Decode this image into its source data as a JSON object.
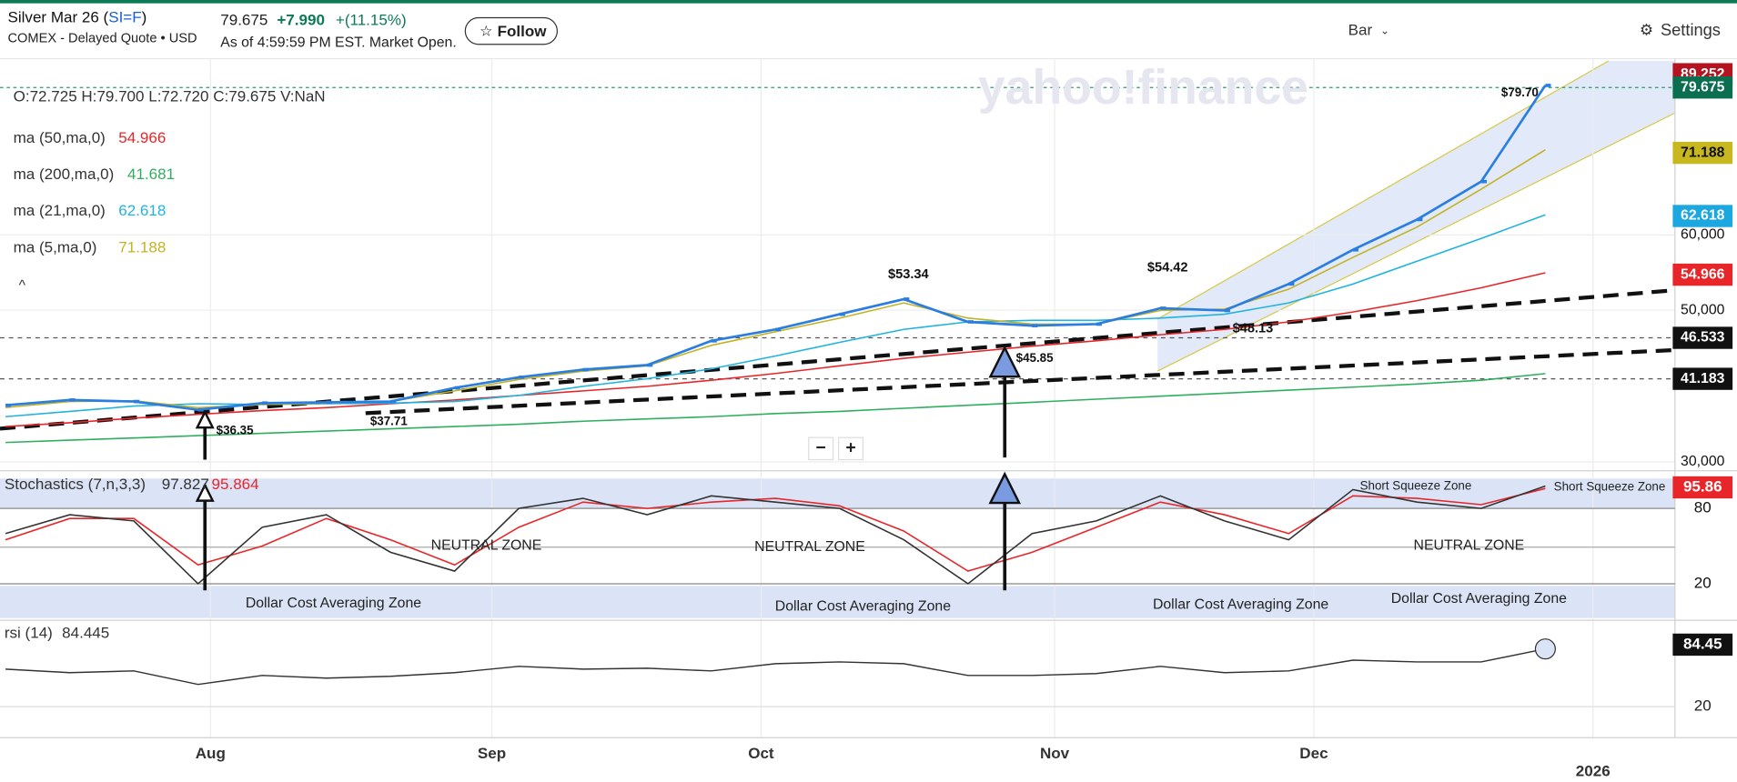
{
  "header": {
    "title_prefix": "Silver Mar 26 (",
    "symbol": "SI=F",
    "title_suffix": ")",
    "exchange": "COMEX - Delayed Quote • USD",
    "price": "79.675",
    "change": "+7.990",
    "change_pct": "+(11.15%)",
    "as_of": "As of 4:59:59 PM EST. Market Open.",
    "follow": "Follow"
  },
  "toolbar": {
    "chart_type": "Bar",
    "settings": "Settings"
  },
  "watermark": "yahoo!finance",
  "legend": {
    "ohlc": "O:72.725  H:79.700  L:72.720  C:79.675  V:NaN",
    "indicators": [
      {
        "label": "ma (50,ma,0)",
        "value": "54.966",
        "color": "#e8262a"
      },
      {
        "label": "ma (200,ma,0)",
        "value": "41.681",
        "color": "#2fae5f"
      },
      {
        "label": "ma (21,ma,0)",
        "value": "62.618",
        "color": "#1fb3e0"
      },
      {
        "label": "ma (5,ma,0)",
        "value": "71.188",
        "color": "#c3b324"
      }
    ]
  },
  "annotations": [
    "$79.70",
    "$53.34",
    "$54.42",
    "$48.13",
    "$45.85",
    "$37.71",
    "$36.35"
  ],
  "price_axis": [
    "89.252",
    "79.675",
    "71.188",
    "62.618",
    "60,000",
    "54.966",
    "50,000",
    "46.533",
    "41.183",
    "30,000"
  ],
  "stochastics": {
    "label": "Stochastics (7,n,3,3)",
    "k": "97.827",
    "d": "95.864",
    "axis": [
      "95.86",
      "80",
      "20"
    ],
    "zones": [
      "Short Squeeze Zone",
      "Short Squeeze Zone",
      "NEUTRAL ZONE",
      "NEUTRAL ZONE",
      "NEUTRAL ZONE",
      "Dollar Cost Averaging Zone",
      "Dollar Cost Averaging Zone",
      "Dollar Cost Averaging Zone",
      "Dollar Cost Averaging Zone"
    ]
  },
  "rsi": {
    "label": "rsi (14)",
    "value": "84.445",
    "axis": [
      "84.45",
      "20"
    ]
  },
  "zoom": [
    "−",
    "+"
  ],
  "x_axis": [
    "Aug",
    "Sep",
    "Oct",
    "Nov",
    "Dec",
    "2026"
  ],
  "chart": {
    "type": "line",
    "ylim": [
      29.6,
      83.2
    ],
    "close": [
      37.5,
      38.2,
      38.0,
      36.9,
      37.8,
      37.9,
      38.0,
      39.8,
      41.2,
      42.2,
      42.8,
      46.0,
      47.5,
      49.5,
      51.5,
      48.5,
      48.0,
      48.2,
      50.3,
      50.0,
      53.5,
      58.0,
      62.0,
      67.0,
      79.675
    ],
    "ma5": [
      37.2,
      38.0,
      38.1,
      37.2,
      37.6,
      37.8,
      38.0,
      39.4,
      40.9,
      42.0,
      42.7,
      45.4,
      47.2,
      49.0,
      51.0,
      49.0,
      48.2,
      48.2,
      50.0,
      50.2,
      52.8,
      57.0,
      61.0,
      66.0,
      71.188
    ],
    "ma21": [
      36.0,
      36.7,
      37.4,
      37.7,
      37.6,
      37.7,
      37.8,
      38.0,
      38.8,
      40.0,
      41.0,
      42.3,
      44.0,
      45.8,
      47.5,
      48.5,
      48.7,
      48.7,
      49.0,
      49.5,
      51.0,
      53.5,
      56.5,
      59.5,
      62.618
    ],
    "ma50": [
      34.7,
      35.2,
      35.8,
      36.3,
      36.8,
      37.2,
      37.7,
      38.2,
      38.8,
      39.4,
      40.0,
      40.8,
      41.7,
      42.7,
      43.7,
      44.5,
      45.3,
      46.0,
      46.8,
      47.5,
      48.5,
      49.8,
      51.3,
      53.0,
      54.966
    ],
    "ma200": [
      32.6,
      32.9,
      33.2,
      33.5,
      33.8,
      34.1,
      34.4,
      34.7,
      35.0,
      35.4,
      35.7,
      36.0,
      36.4,
      36.7,
      37.1,
      37.5,
      37.9,
      38.3,
      38.7,
      39.1,
      39.5,
      39.9,
      40.3,
      40.8,
      41.681
    ],
    "stoch_ylim": [
      -7.4,
      105.6
    ],
    "stoch_k": [
      60,
      75,
      70,
      20,
      65,
      75,
      45,
      30,
      80,
      88,
      75,
      90,
      85,
      80,
      55,
      20,
      60,
      70,
      90,
      70,
      55,
      95,
      85,
      80,
      97.827
    ],
    "stoch_d": [
      55,
      72,
      72,
      35,
      50,
      72,
      55,
      35,
      65,
      85,
      80,
      85,
      88,
      82,
      62,
      30,
      45,
      65,
      85,
      75,
      60,
      90,
      88,
      83,
      95.864
    ],
    "rsi_ylim": [
      -13,
      113.8
    ],
    "rsi": [
      62,
      58,
      60,
      45,
      55,
      52,
      54,
      58,
      65,
      62,
      63,
      60,
      68,
      70,
      68,
      55,
      55,
      57,
      65,
      58,
      60,
      72,
      70,
      70,
      84.445
    ]
  }
}
